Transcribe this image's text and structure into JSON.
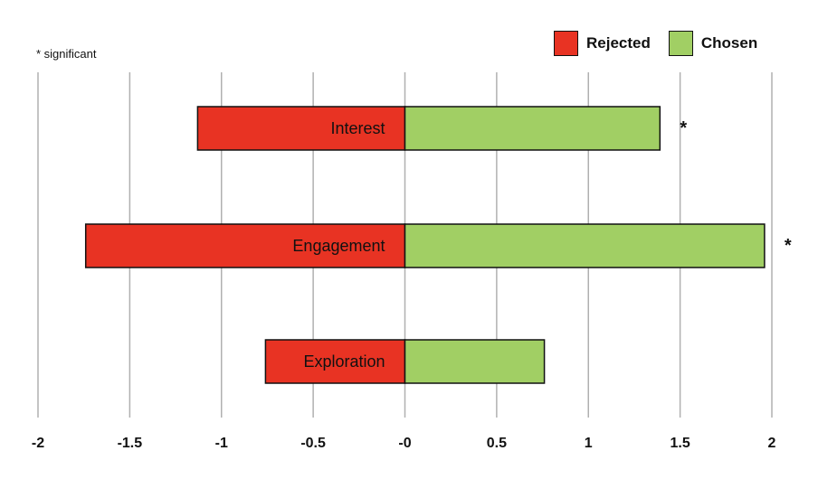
{
  "note": "* significant",
  "chart_data": {
    "type": "bar",
    "orientation": "horizontal",
    "stacked": "diverging",
    "categories": [
      "Interest",
      "Engagement",
      "Exploration"
    ],
    "series": [
      {
        "name": "Rejected",
        "color": "#e83323",
        "values": [
          -1.13,
          -1.74,
          -0.76
        ]
      },
      {
        "name": "Chosen",
        "color": "#a1cf64",
        "values": [
          1.39,
          1.96,
          0.76
        ]
      }
    ],
    "significance": [
      "*",
      "*",
      ""
    ],
    "xlim": [
      -2,
      2
    ],
    "xticks": [
      -2,
      -1.5,
      -1,
      -0.5,
      0,
      0.5,
      1,
      1.5,
      2
    ],
    "xtick_labels": [
      "-2",
      "-1.5",
      "-1",
      "-0.5",
      "-0",
      "0.5",
      "1",
      "1.5",
      "2"
    ],
    "grid": "vertical",
    "legend": "top-right"
  }
}
